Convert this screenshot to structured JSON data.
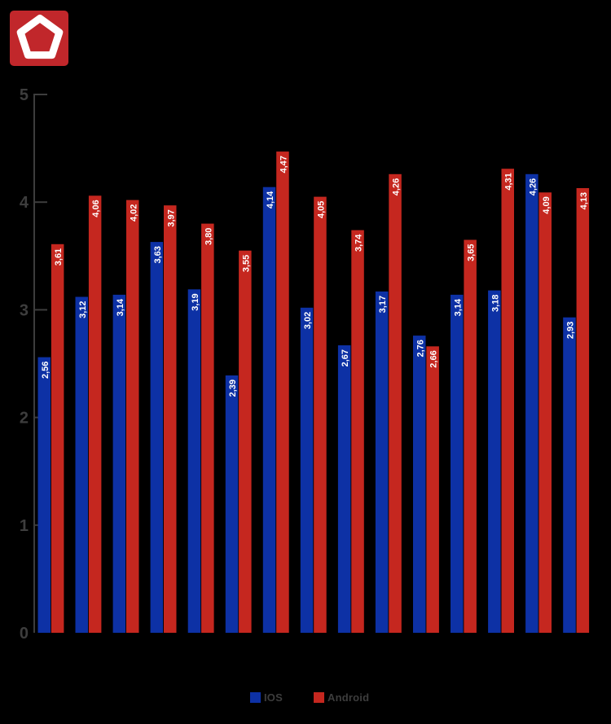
{
  "app": {
    "background_color": "#000000",
    "logo": {
      "shape": "pentagon-outline",
      "background_color": "#c1272b",
      "outline_color": "#ffffff"
    }
  },
  "chart_data": {
    "type": "bar",
    "title": "",
    "xlabel": "",
    "ylabel": "",
    "ylim": [
      0,
      5
    ],
    "yticks": [
      0,
      1,
      2,
      3,
      4,
      5
    ],
    "ytick_labels": [
      "0",
      "1",
      "2",
      "3",
      "4",
      "5"
    ],
    "grid": false,
    "decimal_separator": ",",
    "n_groups": 15,
    "categories": [
      "",
      "",
      "",
      "",
      "",
      "",
      "",
      "",
      "",
      "",
      "",
      "",
      "",
      "",
      ""
    ],
    "series": [
      {
        "name": "IOS",
        "color": "#0d31a5",
        "values": [
          2.56,
          3.12,
          3.14,
          3.63,
          3.19,
          2.39,
          4.14,
          3.02,
          2.67,
          3.17,
          2.76,
          3.14,
          3.18,
          4.26,
          2.93
        ],
        "labels": [
          "2,56",
          "3,12",
          "3,14",
          "3,63",
          "3,19",
          "2,39",
          "4,14",
          "3,02",
          "2,67",
          "3,17",
          "2,76",
          "3,14",
          "3,18",
          "4,26",
          "2,93"
        ]
      },
      {
        "name": "Android",
        "color": "#c5271f",
        "values": [
          3.61,
          4.06,
          4.02,
          3.97,
          3.8,
          3.55,
          4.47,
          4.05,
          3.74,
          4.26,
          2.66,
          3.65,
          4.31,
          4.09,
          4.13
        ],
        "labels": [
          "3,61",
          "4,06",
          "4,02",
          "3,97",
          "3,80",
          "3,55",
          "4,47",
          "4,05",
          "3,74",
          "4,26",
          "2,66",
          "3,65",
          "4,31",
          "4,09",
          "4,13"
        ]
      }
    ],
    "legend_position": "bottom",
    "axis_color": "#3d3d3d",
    "tick_label_color": "#3d3d3d",
    "bar_value_label_color": "#ffffff"
  },
  "legend": {
    "items": [
      {
        "label": "IOS",
        "color": "#0d31a5"
      },
      {
        "label": "Android",
        "color": "#c5271f"
      }
    ],
    "text_color": "#3d3d3d"
  }
}
